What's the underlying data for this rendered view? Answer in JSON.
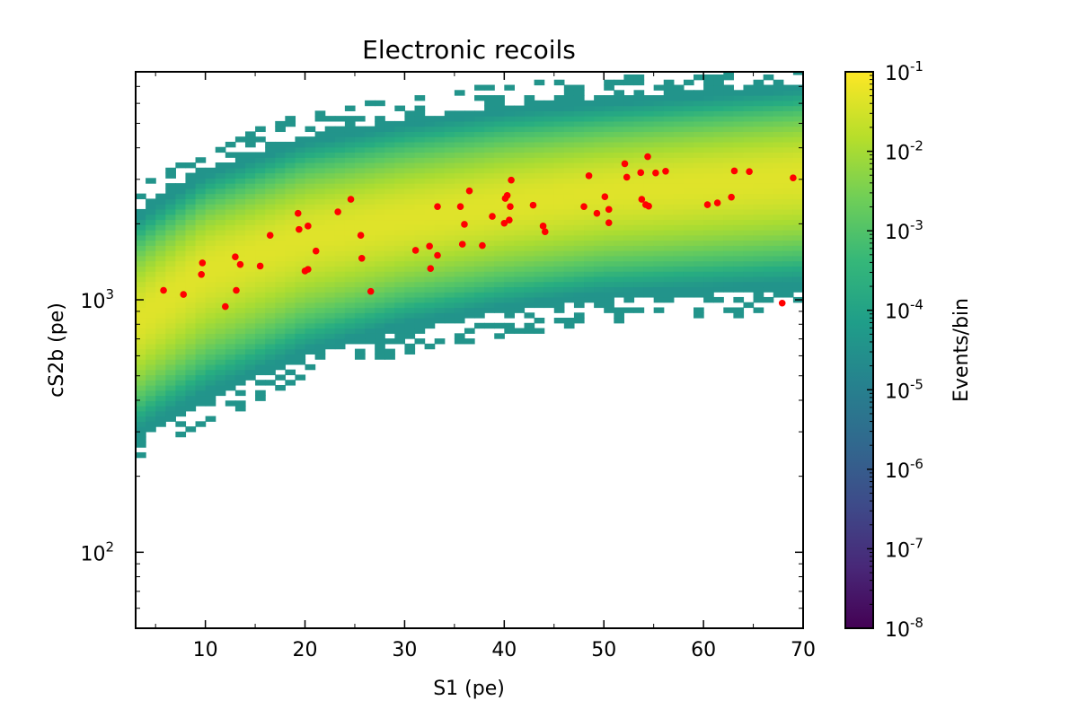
{
  "chart_data": {
    "type": "heatmap",
    "title": "Electronic recoils",
    "xlabel": "S1 (pe)",
    "ylabel": "cS2b (pe)",
    "xlim": [
      3,
      70
    ],
    "ylim": [
      50,
      8000
    ],
    "yscale": "log",
    "x_ticks": [
      10,
      20,
      30,
      40,
      50,
      60,
      70
    ],
    "y_ticks": [
      {
        "value": 100,
        "base": "10",
        "exp": "2"
      },
      {
        "value": 1000,
        "base": "10",
        "exp": "3"
      }
    ],
    "colorbar": {
      "label": "Events/bin",
      "scale": "log",
      "colormap": "viridis",
      "range": [
        1e-08,
        0.1
      ],
      "ticks": [
        {
          "value": 0.1,
          "base": "10",
          "exp": "-1"
        },
        {
          "value": 0.01,
          "base": "10",
          "exp": "-2"
        },
        {
          "value": 0.001,
          "base": "10",
          "exp": "-3"
        },
        {
          "value": 0.0001,
          "base": "10",
          "exp": "-4"
        },
        {
          "value": 1e-05,
          "base": "10",
          "exp": "-5"
        },
        {
          "value": 1e-06,
          "base": "10",
          "exp": "-6"
        },
        {
          "value": 1e-07,
          "base": "10",
          "exp": "-7"
        },
        {
          "value": 1e-08,
          "base": "10",
          "exp": "-8"
        }
      ]
    },
    "band": {
      "description": "ER band median in log10(cS2b) vs S1",
      "median_points": [
        [
          3,
          2.92
        ],
        [
          10,
          3.12
        ],
        [
          20,
          3.25
        ],
        [
          30,
          3.32
        ],
        [
          40,
          3.38
        ],
        [
          50,
          3.43
        ],
        [
          60,
          3.46
        ],
        [
          70,
          3.49
        ]
      ],
      "lower_edge_points": [
        [
          3,
          2.45
        ],
        [
          10,
          2.6
        ],
        [
          20,
          2.77
        ],
        [
          30,
          2.88
        ],
        [
          40,
          2.95
        ],
        [
          50,
          3.0
        ],
        [
          60,
          3.02
        ],
        [
          70,
          3.04
        ]
      ],
      "upper_edge_points": [
        [
          3,
          3.35
        ],
        [
          10,
          3.52
        ],
        [
          20,
          3.65
        ],
        [
          30,
          3.72
        ],
        [
          40,
          3.77
        ],
        [
          50,
          3.8
        ],
        [
          60,
          3.83
        ],
        [
          70,
          3.86
        ]
      ]
    },
    "scatter": {
      "color": "#ff0000",
      "points": [
        [
          5.8,
          1090
        ],
        [
          7.8,
          1050
        ],
        [
          9.6,
          1260
        ],
        [
          9.7,
          1400
        ],
        [
          12.0,
          940
        ],
        [
          13.0,
          1480
        ],
        [
          13.1,
          1090
        ],
        [
          13.5,
          1380
        ],
        [
          15.5,
          1360
        ],
        [
          16.5,
          1800
        ],
        [
          19.3,
          2200
        ],
        [
          19.4,
          1900
        ],
        [
          20.0,
          1300
        ],
        [
          20.3,
          1320
        ],
        [
          20.3,
          1960
        ],
        [
          21.1,
          1560
        ],
        [
          23.3,
          2230
        ],
        [
          24.6,
          2500
        ],
        [
          25.6,
          1800
        ],
        [
          25.7,
          1460
        ],
        [
          26.6,
          1080
        ],
        [
          31.1,
          1570
        ],
        [
          32.5,
          1630
        ],
        [
          32.6,
          1330
        ],
        [
          33.3,
          2340
        ],
        [
          33.3,
          1500
        ],
        [
          35.6,
          2340
        ],
        [
          35.8,
          1660
        ],
        [
          36.0,
          1990
        ],
        [
          36.5,
          2700
        ],
        [
          37.8,
          1640
        ],
        [
          38.8,
          2140
        ],
        [
          40.0,
          2010
        ],
        [
          40.1,
          2520
        ],
        [
          40.3,
          2590
        ],
        [
          40.5,
          2070
        ],
        [
          40.6,
          2340
        ],
        [
          40.7,
          2980
        ],
        [
          42.9,
          2370
        ],
        [
          43.9,
          1960
        ],
        [
          44.1,
          1860
        ],
        [
          48.0,
          2340
        ],
        [
          48.5,
          3100
        ],
        [
          49.3,
          2200
        ],
        [
          50.1,
          2560
        ],
        [
          50.5,
          2020
        ],
        [
          50.5,
          2280
        ],
        [
          52.1,
          3460
        ],
        [
          52.3,
          3060
        ],
        [
          53.7,
          3190
        ],
        [
          53.8,
          2500
        ],
        [
          54.2,
          2380
        ],
        [
          54.4,
          3690
        ],
        [
          54.5,
          2350
        ],
        [
          55.2,
          3180
        ],
        [
          56.2,
          3230
        ],
        [
          60.4,
          2380
        ],
        [
          61.4,
          2420
        ],
        [
          62.8,
          2550
        ],
        [
          63.1,
          3240
        ],
        [
          64.6,
          3220
        ],
        [
          67.9,
          970
        ],
        [
          69.0,
          3040
        ]
      ]
    }
  }
}
